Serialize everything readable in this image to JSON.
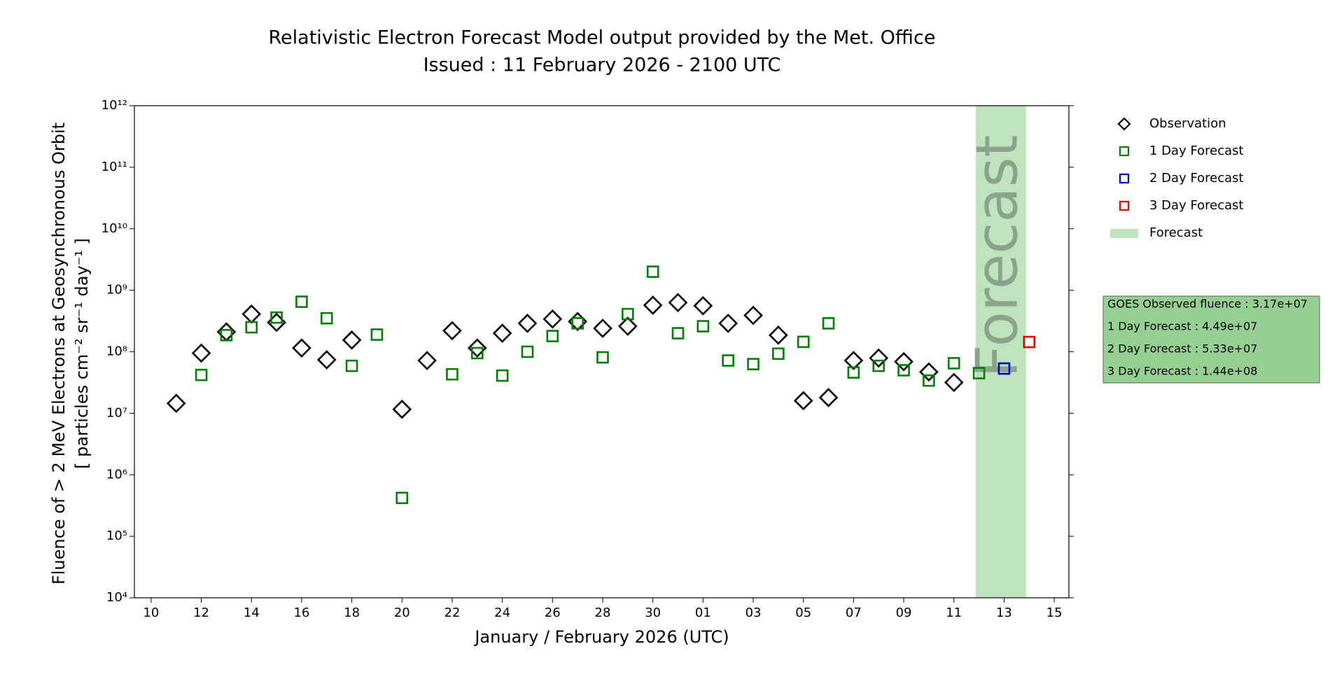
{
  "chart_data": {
    "type": "scatter",
    "title": "Relativistic Electron Forecast Model output provided by the Met. Office",
    "subtitle": "Issued : 11 February 2026 - 2100 UTC",
    "xlabel": "January / February 2026 (UTC)",
    "ylabel": [
      "Fluence of > 2 MeV Electrons at Geosynchronous Orbit",
      "[ particles cm⁻² sr⁻¹ day⁻¹ ]"
    ],
    "yscale": "log",
    "ylim": [
      10000,
      1000000000000
    ],
    "yticks": [
      {
        "value": 10000,
        "label": "10⁴"
      },
      {
        "value": 100000,
        "label": "10⁵"
      },
      {
        "value": 1000000,
        "label": "10⁶"
      },
      {
        "value": 10000000,
        "label": "10⁷"
      },
      {
        "value": 100000000,
        "label": "10⁸"
      },
      {
        "value": 1000000000,
        "label": "10⁹"
      },
      {
        "value": 10000000000,
        "label": "10¹⁰"
      },
      {
        "value": 100000000000,
        "label": "10¹¹"
      },
      {
        "value": 1000000000000,
        "label": "10¹²"
      }
    ],
    "xlim": [
      "2026-01-09T08:00Z",
      "2026-02-15T14:00Z"
    ],
    "xticks": [
      {
        "value": "2026-01-10",
        "label": "10"
      },
      {
        "value": "2026-01-12",
        "label": "12"
      },
      {
        "value": "2026-01-14",
        "label": "14"
      },
      {
        "value": "2026-01-16",
        "label": "16"
      },
      {
        "value": "2026-01-18",
        "label": "18"
      },
      {
        "value": "2026-01-20",
        "label": "20"
      },
      {
        "value": "2026-01-22",
        "label": "22"
      },
      {
        "value": "2026-01-24",
        "label": "24"
      },
      {
        "value": "2026-01-26",
        "label": "26"
      },
      {
        "value": "2026-01-28",
        "label": "28"
      },
      {
        "value": "2026-01-30",
        "label": "30"
      },
      {
        "value": "2026-02-01",
        "label": "01"
      },
      {
        "value": "2026-02-03",
        "label": "03"
      },
      {
        "value": "2026-02-05",
        "label": "05"
      },
      {
        "value": "2026-02-07",
        "label": "07"
      },
      {
        "value": "2026-02-09",
        "label": "09"
      },
      {
        "value": "2026-02-11",
        "label": "11"
      },
      {
        "value": "2026-02-13",
        "label": "13"
      },
      {
        "value": "2026-02-15",
        "label": "15"
      }
    ],
    "legend": "outside-right",
    "series": [
      {
        "name": "Observation",
        "marker": "diamond",
        "color": "#000000",
        "x": [
          "2026-01-11",
          "2026-01-12",
          "2026-01-13",
          "2026-01-14",
          "2026-01-15",
          "2026-01-16",
          "2026-01-17",
          "2026-01-18",
          "2026-01-20",
          "2026-01-21",
          "2026-01-22",
          "2026-01-23",
          "2026-01-24",
          "2026-01-25",
          "2026-01-26",
          "2026-01-27",
          "2026-01-28",
          "2026-01-29",
          "2026-01-30",
          "2026-01-31",
          "2026-02-01",
          "2026-02-02",
          "2026-02-03",
          "2026-02-04",
          "2026-02-05",
          "2026-02-06",
          "2026-02-07",
          "2026-02-08",
          "2026-02-09",
          "2026-02-10",
          "2026-02-11"
        ],
        "values": [
          14500000,
          95000000,
          210000000,
          410000000,
          300000000,
          115000000,
          74000000,
          155000000,
          11600000,
          72000000,
          220000000,
          115000000,
          200000000,
          290000000,
          340000000,
          310000000,
          240000000,
          260000000,
          570000000,
          630000000,
          560000000,
          290000000,
          390000000,
          186000000,
          16000000,
          18000000,
          72000000,
          79000000,
          69000000,
          47000000,
          31700000
        ]
      },
      {
        "name": "1 Day Forecast",
        "marker": "square",
        "color": "#008000",
        "x": [
          "2026-01-12",
          "2026-01-13",
          "2026-01-14",
          "2026-01-15",
          "2026-01-16",
          "2026-01-17",
          "2026-01-18",
          "2026-01-19",
          "2026-01-20",
          "2026-01-22",
          "2026-01-23",
          "2026-01-24",
          "2026-01-25",
          "2026-01-26",
          "2026-01-27",
          "2026-01-28",
          "2026-01-29",
          "2026-01-30",
          "2026-01-31",
          "2026-02-01",
          "2026-02-02",
          "2026-02-03",
          "2026-02-04",
          "2026-02-05",
          "2026-02-06",
          "2026-02-07",
          "2026-02-08",
          "2026-02-09",
          "2026-02-10",
          "2026-02-11",
          "2026-02-12"
        ],
        "values": [
          42000000,
          186000000,
          250000000,
          360000000,
          650000000,
          350000000,
          59000000,
          190000000,
          420000,
          43000000,
          95000000,
          41000000,
          100000000,
          180000000,
          290000000,
          81000000,
          410000000,
          2000000000,
          200000000,
          260000000,
          72000000,
          63000000,
          93000000,
          145000000,
          290000000,
          46000000,
          59000000,
          50000000,
          34000000,
          65000000,
          44900000
        ]
      },
      {
        "name": "2 Day Forecast",
        "marker": "square",
        "color": "#0000cc",
        "x": [
          "2026-02-13"
        ],
        "values": [
          53300000
        ]
      },
      {
        "name": "3 Day Forecast",
        "marker": "square",
        "color": "#ee0000",
        "x": [
          "2026-02-14"
        ],
        "values": [
          144000000
        ]
      }
    ],
    "forecast_span": {
      "label": "Forecast",
      "x": [
        "2026-02-11T21:00Z",
        "2026-02-13T21:00Z"
      ],
      "color": "#bfe3bd"
    },
    "info_box": [
      "GOES Observed fluence : 3.17e+07",
      "1 Day Forecast : 4.49e+07",
      "2 Day Forecast : 5.33e+07",
      "3 Day Forecast : 1.44e+08"
    ]
  }
}
